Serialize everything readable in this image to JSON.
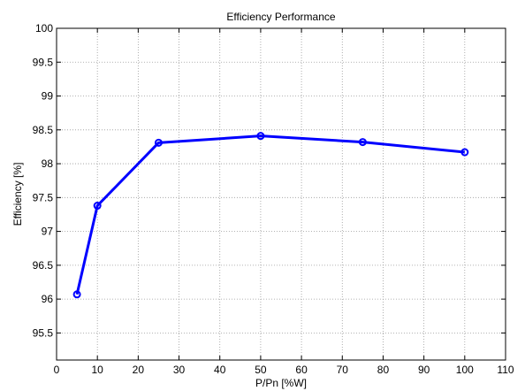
{
  "chart_data": {
    "type": "line",
    "title": "Efficiency Performance",
    "xlabel": "P/Pn [%W]",
    "ylabel": "Efficiency [%]",
    "xlim": [
      0,
      110
    ],
    "ylim": [
      95.1,
      100
    ],
    "xticks": [
      0,
      10,
      20,
      30,
      40,
      50,
      60,
      70,
      80,
      90,
      100,
      110
    ],
    "yticks": [
      95.5,
      96,
      96.5,
      97,
      97.5,
      98,
      98.5,
      99,
      99.5,
      100
    ],
    "xtick_labels": [
      "0",
      "10",
      "20",
      "30",
      "40",
      "50",
      "60",
      "70",
      "80",
      "90",
      "100",
      "110"
    ],
    "ytick_labels": [
      "95.5",
      "96",
      "96.5",
      "97",
      "97.5",
      "98",
      "98.5",
      "99",
      "99.5",
      "100"
    ],
    "grid": true,
    "series": [
      {
        "color": "#0000ff",
        "marker": "circle",
        "x": [
          5,
          10,
          25,
          50,
          75,
          100
        ],
        "y": [
          96.07,
          97.38,
          98.31,
          98.41,
          98.32,
          98.17
        ]
      }
    ]
  }
}
